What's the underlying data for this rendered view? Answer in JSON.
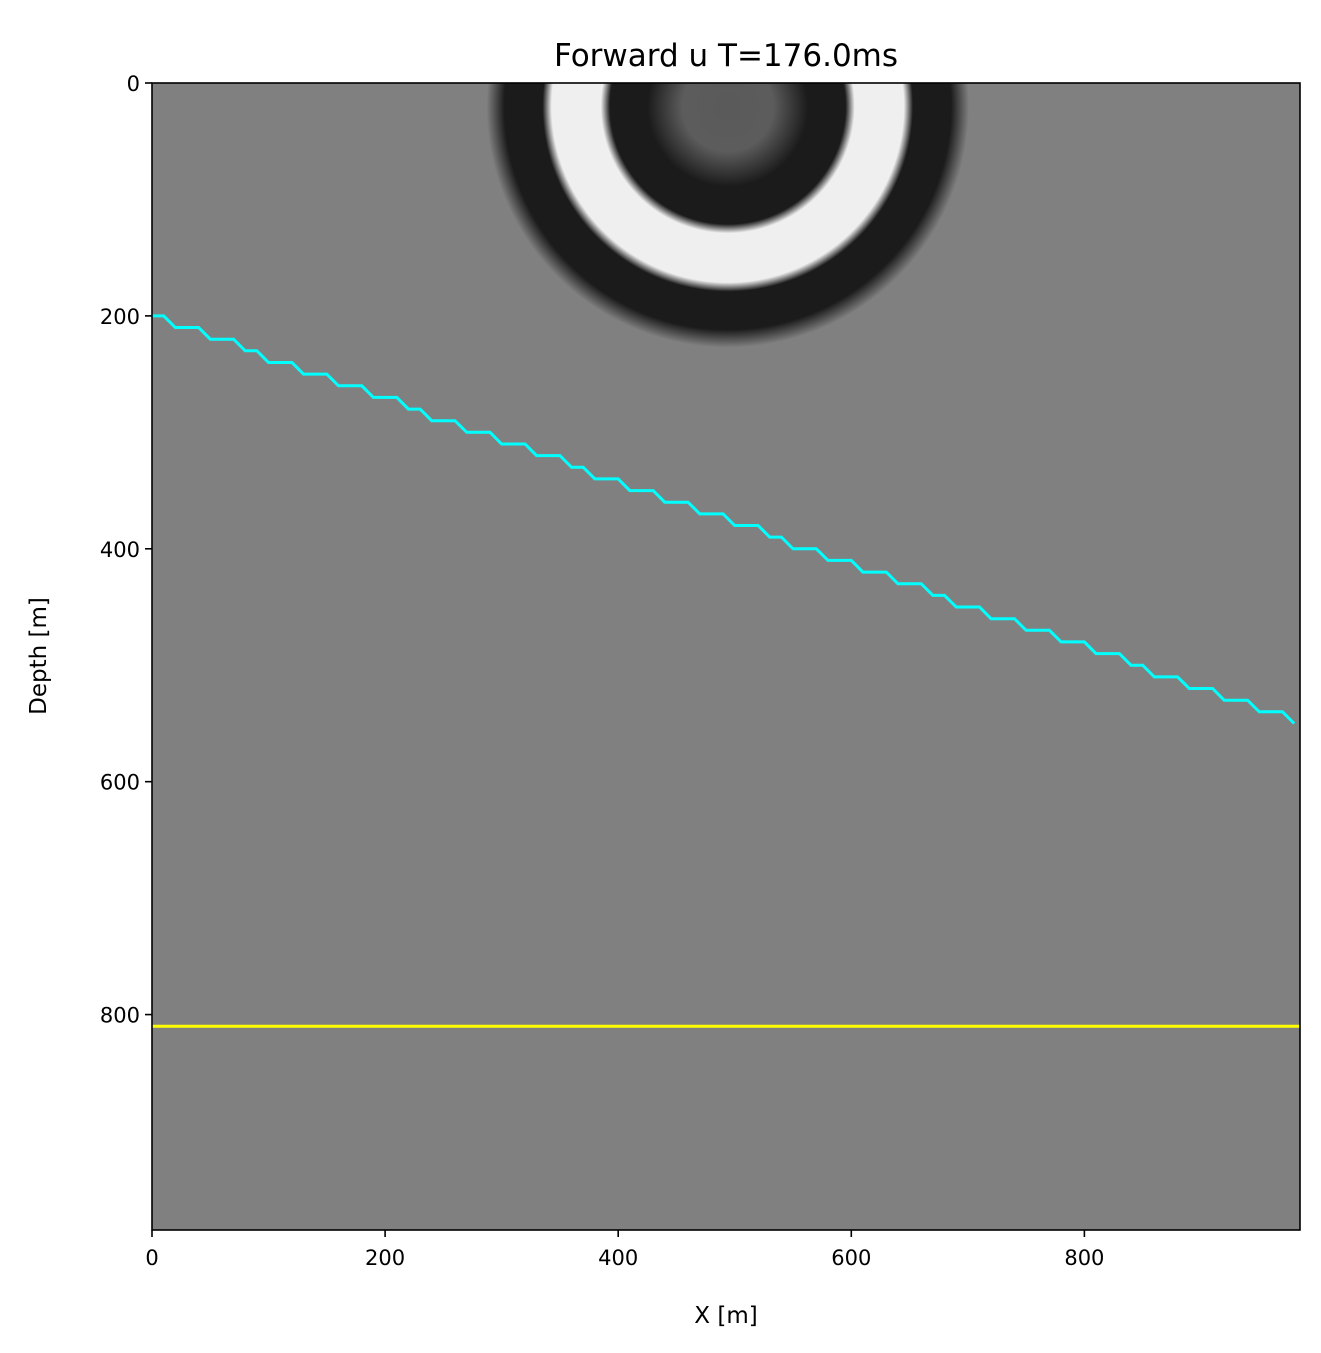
{
  "chart_data": {
    "type": "heatmap",
    "title": "Forward u T=176.0ms",
    "xlabel": "X [m]",
    "ylabel": "Depth [m]",
    "xlim": [
      0,
      985
    ],
    "ylim": [
      985,
      0
    ],
    "xticks": [
      "0",
      "200",
      "400",
      "600",
      "800"
    ],
    "xtick_values": [
      0,
      200,
      400,
      600,
      800
    ],
    "yticks": [
      "0",
      "200",
      "400",
      "600",
      "800"
    ],
    "ytick_values": [
      0,
      200,
      400,
      600,
      800
    ],
    "grid": false,
    "colormap": "gray",
    "background_color": "#808080",
    "wavefield": {
      "source_x": 494,
      "source_depth": 20,
      "rings": [
        {
          "outer_radius": 65,
          "color": "#5c5c5c"
        },
        {
          "outer_radius": 105,
          "color": "#1b1b1b"
        },
        {
          "outer_radius": 155,
          "color": "#efefef"
        },
        {
          "outer_radius": 196,
          "color": "#1b1b1b"
        }
      ]
    },
    "series": [
      {
        "kind": "stepped-line",
        "color": "#00ffff",
        "x_start": 0,
        "depth_start": 200,
        "x_end": 985,
        "depth_end": 550,
        "depth_step": 10,
        "x_step": 10
      },
      {
        "kind": "horizontal-line",
        "color": "#ffff00",
        "depth": 810
      }
    ]
  }
}
